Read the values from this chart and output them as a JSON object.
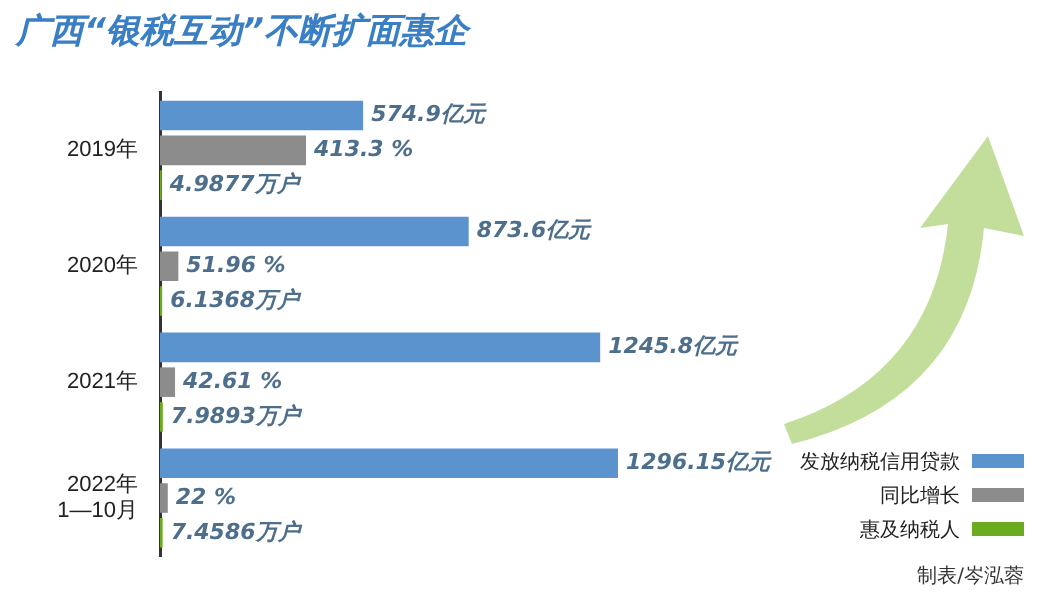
{
  "chart_data": {
    "type": "bar",
    "orientation": "horizontal",
    "title": "广西“银税互动”不断扩面惠企",
    "categories": [
      "2019年",
      "2020年",
      "2021年",
      "2022年 1—10月"
    ],
    "series": [
      {
        "name": "发放纳税信用贷款",
        "color": "#5b93cf",
        "values": [
          574.9,
          873.6,
          1245.8,
          1296.15
        ],
        "value_labels": [
          "574.9亿元",
          "873.6亿元",
          "1245.8亿元",
          "1296.15亿元"
        ]
      },
      {
        "name": "同比增长",
        "color": "#8c8c8c",
        "values": [
          413.3,
          51.96,
          42.61,
          22
        ],
        "value_labels": [
          "413.3 %",
          "51.96 %",
          "42.61 %",
          "22 %"
        ]
      },
      {
        "name": "惠及纳税人",
        "color": "#6aab1f",
        "values": [
          4.9877,
          6.1368,
          7.9893,
          7.4586
        ],
        "value_labels": [
          "4.9877万户",
          "6.1368万户",
          "7.9893万户",
          "7.4586万户"
        ]
      }
    ],
    "legend": "bottom right",
    "annotations": [
      "制表/岑泓蓉"
    ]
  }
}
